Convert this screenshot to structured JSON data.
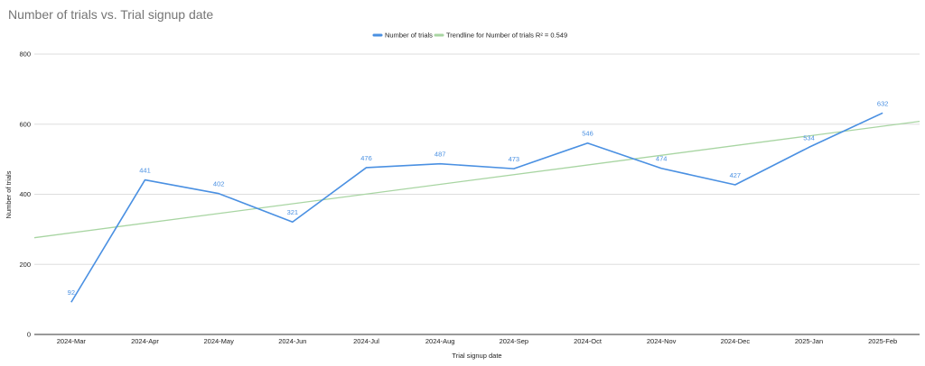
{
  "chart_data": {
    "type": "line",
    "title": "Number of trials vs. Trial signup date",
    "xlabel": "Trial signup date",
    "ylabel": "Number of trials",
    "categories": [
      "2024-Mar",
      "2024-Apr",
      "2024-May",
      "2024-Jun",
      "2024-Jul",
      "2024-Aug",
      "2024-Sep",
      "2024-Oct",
      "2024-Nov",
      "2024-Dec",
      "2025-Jan",
      "2025-Feb"
    ],
    "series": [
      {
        "name": "Number of trials",
        "color": "#4a90e2",
        "values": [
          92,
          441,
          402,
          321,
          476,
          487,
          473,
          546,
          474,
          427,
          534,
          632
        ]
      }
    ],
    "trendline": {
      "name": "Trendline for Number of trials R² = 0.549",
      "color": "#a8d5a2",
      "type": "linear"
    },
    "ylim": [
      0,
      800
    ],
    "yticks": [
      0,
      200,
      400,
      600,
      800
    ],
    "grid": true,
    "legend_position": "top"
  }
}
